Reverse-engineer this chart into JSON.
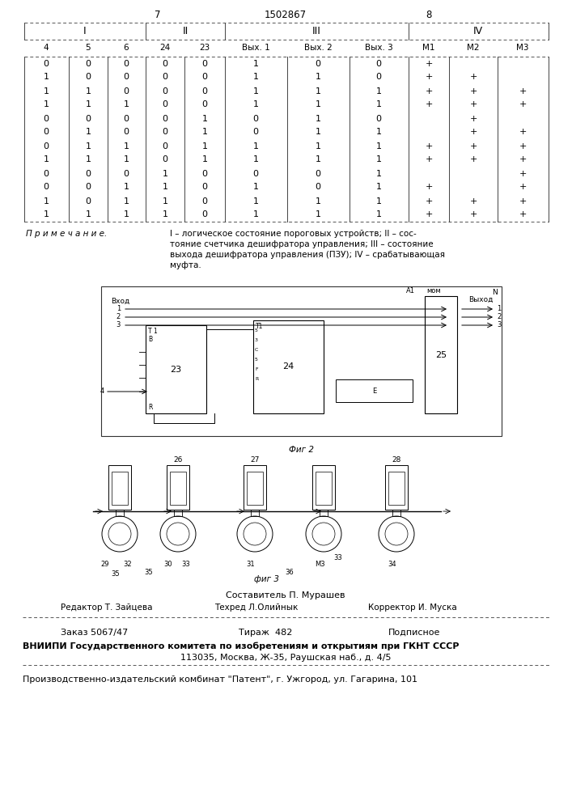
{
  "page_number_left": "7",
  "patent_number": "1502867",
  "page_number_right": "8",
  "section_headers": [
    "I",
    "II",
    "III",
    "IV"
  ],
  "col_labels": [
    "4",
    "5",
    "6",
    "24",
    "23",
    "Вых. 1",
    "Вых. 2",
    "Вых. 3",
    "M1",
    "M2",
    "M3"
  ],
  "table_data": [
    [
      "0",
      "0",
      "0",
      "0",
      "0",
      "1",
      "0",
      "0",
      "+",
      "",
      ""
    ],
    [
      "1",
      "0",
      "0",
      "0",
      "0",
      "1",
      "1",
      "0",
      "+",
      "+",
      ""
    ],
    [
      "1",
      "1",
      "0",
      "0",
      "0",
      "1",
      "1",
      "1",
      "+",
      "+",
      "+"
    ],
    [
      "1",
      "1",
      "1",
      "0",
      "0",
      "1",
      "1",
      "1",
      "+",
      "+",
      "+"
    ],
    [
      "0",
      "0",
      "0",
      "0",
      "1",
      "0",
      "1",
      "0",
      "",
      "+",
      ""
    ],
    [
      "0",
      "1",
      "0",
      "0",
      "1",
      "0",
      "1",
      "1",
      "",
      "+",
      "+"
    ],
    [
      "0",
      "1",
      "1",
      "0",
      "1",
      "1",
      "1",
      "1",
      "+",
      "+",
      "+"
    ],
    [
      "1",
      "1",
      "1",
      "0",
      "1",
      "1",
      "1",
      "1",
      "+",
      "+",
      "+"
    ],
    [
      "0",
      "0",
      "0",
      "1",
      "0",
      "0",
      "0",
      "1",
      "",
      "",
      "+"
    ],
    [
      "0",
      "0",
      "1",
      "1",
      "0",
      "1",
      "0",
      "1",
      "+",
      "",
      "+"
    ],
    [
      "1",
      "0",
      "1",
      "1",
      "0",
      "1",
      "1",
      "1",
      "+",
      "+",
      "+"
    ],
    [
      "1",
      "1",
      "1",
      "1",
      "0",
      "1",
      "1",
      "1",
      "+",
      "+",
      "+"
    ]
  ],
  "note_lines": [
    "I – логическое состояние пороговых устройств; II – сос-",
    "тояние счетчика дешифратора управления; III – состояние",
    "выхода дешифратора управления (ПЗУ); IV – срабатывающая",
    "муфта."
  ],
  "staff_composer": "Составитель П. Мурашев",
  "staff_editor": "Редактор Т. Зайцева",
  "staff_tech": "Техред Л.Олийнык",
  "staff_corrector": "Корректор И. Муска",
  "order_text": "Заказ 5067/47",
  "tirazh_text": "Тираж  482",
  "podpisnoe_text": "Подписное",
  "vnipi_line1": "ВНИИПИ Государственного комитета по изобретениям и открытиям при ГКНТ СССР",
  "vnipi_line2": "113035, Москва, Ж-35, Раушская наб., д. 4/5",
  "patent_kombnat": "Производственно-издательский комбинат \"Патент\", г. Ужгород, ул. Гагарина, 101",
  "fig2_caption": "Фиг 2",
  "fig3_caption": "фиг 3"
}
